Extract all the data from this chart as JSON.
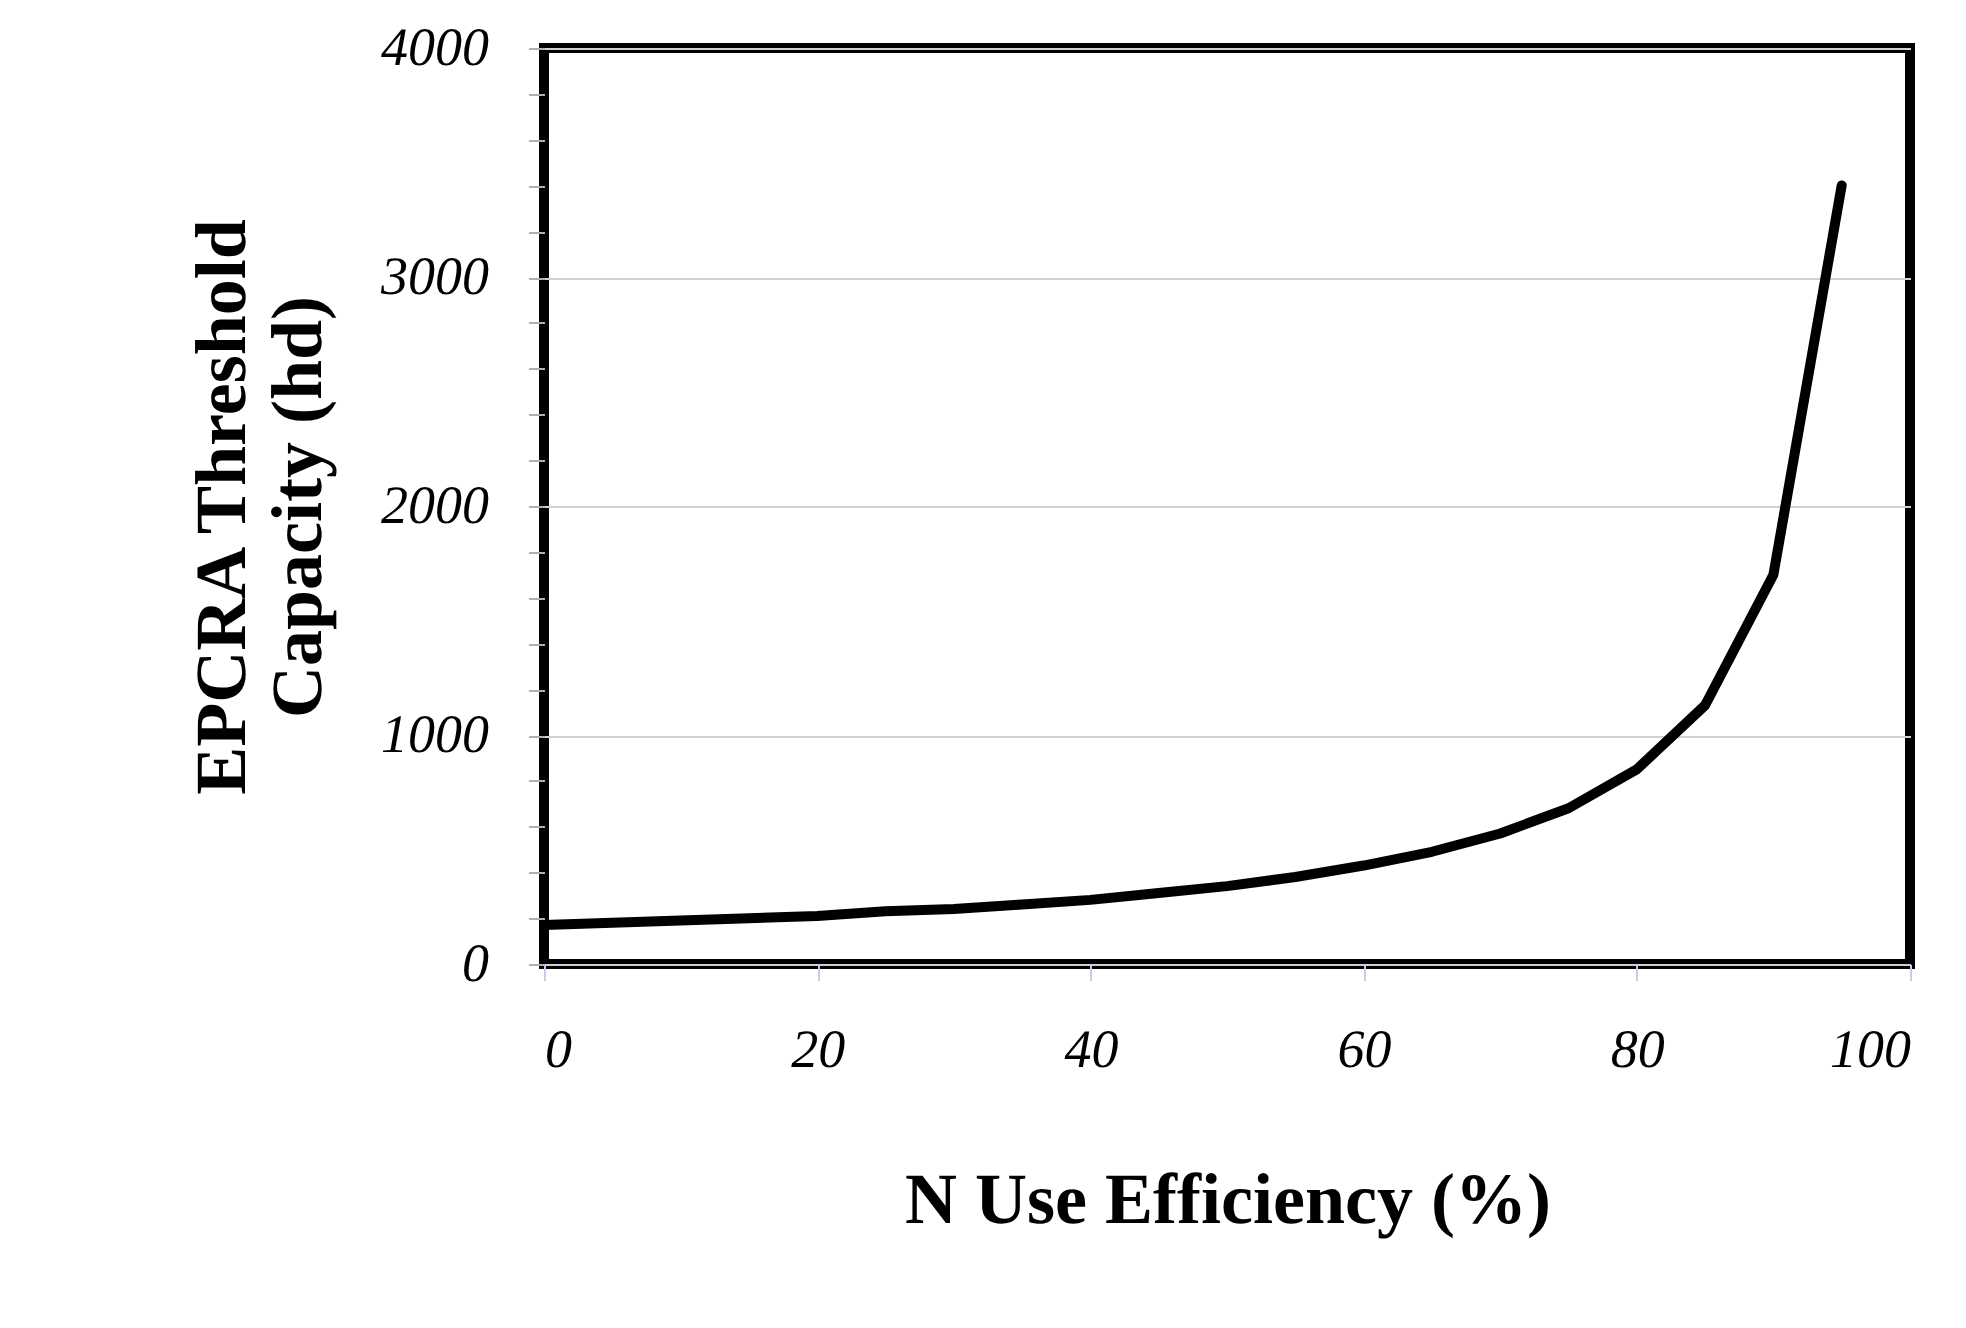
{
  "chart_data": {
    "type": "line",
    "xlabel": "N Use Efficiency (%)",
    "ylabel": "EPCRA Threshold Capacity (hd)",
    "x": [
      0,
      5,
      10,
      15,
      20,
      25,
      30,
      35,
      40,
      45,
      50,
      55,
      60,
      65,
      70,
      75,
      80,
      85,
      90,
      95
    ],
    "series": [
      {
        "color": "#000000",
        "values": [
          170,
          180,
          190,
          200,
          210,
          230,
          240,
          260,
          280,
          310,
          340,
          380,
          430,
          490,
          570,
          680,
          850,
          1130,
          1700,
          3400
        ]
      }
    ],
    "xlim": [
      0,
      100
    ],
    "ylim": [
      0,
      4000
    ],
    "xticks": [
      0,
      20,
      40,
      60,
      80,
      100
    ],
    "yticks": [
      0,
      {
        "value": 200,
        "label": null
      },
      {
        "value": 400,
        "label": null
      },
      {
        "value": 600,
        "label": null
      },
      {
        "value": 800,
        "label": null
      },
      1000,
      {
        "value": 1200,
        "label": null
      },
      {
        "value": 1400,
        "label": null
      },
      {
        "value": 1600,
        "label": null
      },
      {
        "value": 1800,
        "label": null
      },
      2000,
      {
        "value": 2200,
        "label": null
      },
      {
        "value": 2400,
        "label": null
      },
      {
        "value": 2600,
        "label": null
      },
      {
        "value": 2800,
        "label": null
      },
      3000,
      {
        "value": 3200,
        "label": null
      },
      {
        "value": 3400,
        "label": null
      },
      {
        "value": 3600,
        "label": null
      },
      {
        "value": 3800,
        "label": null
      },
      4000
    ],
    "grid": "y",
    "legend": false,
    "marker": "none",
    "line_style": "solid"
  }
}
